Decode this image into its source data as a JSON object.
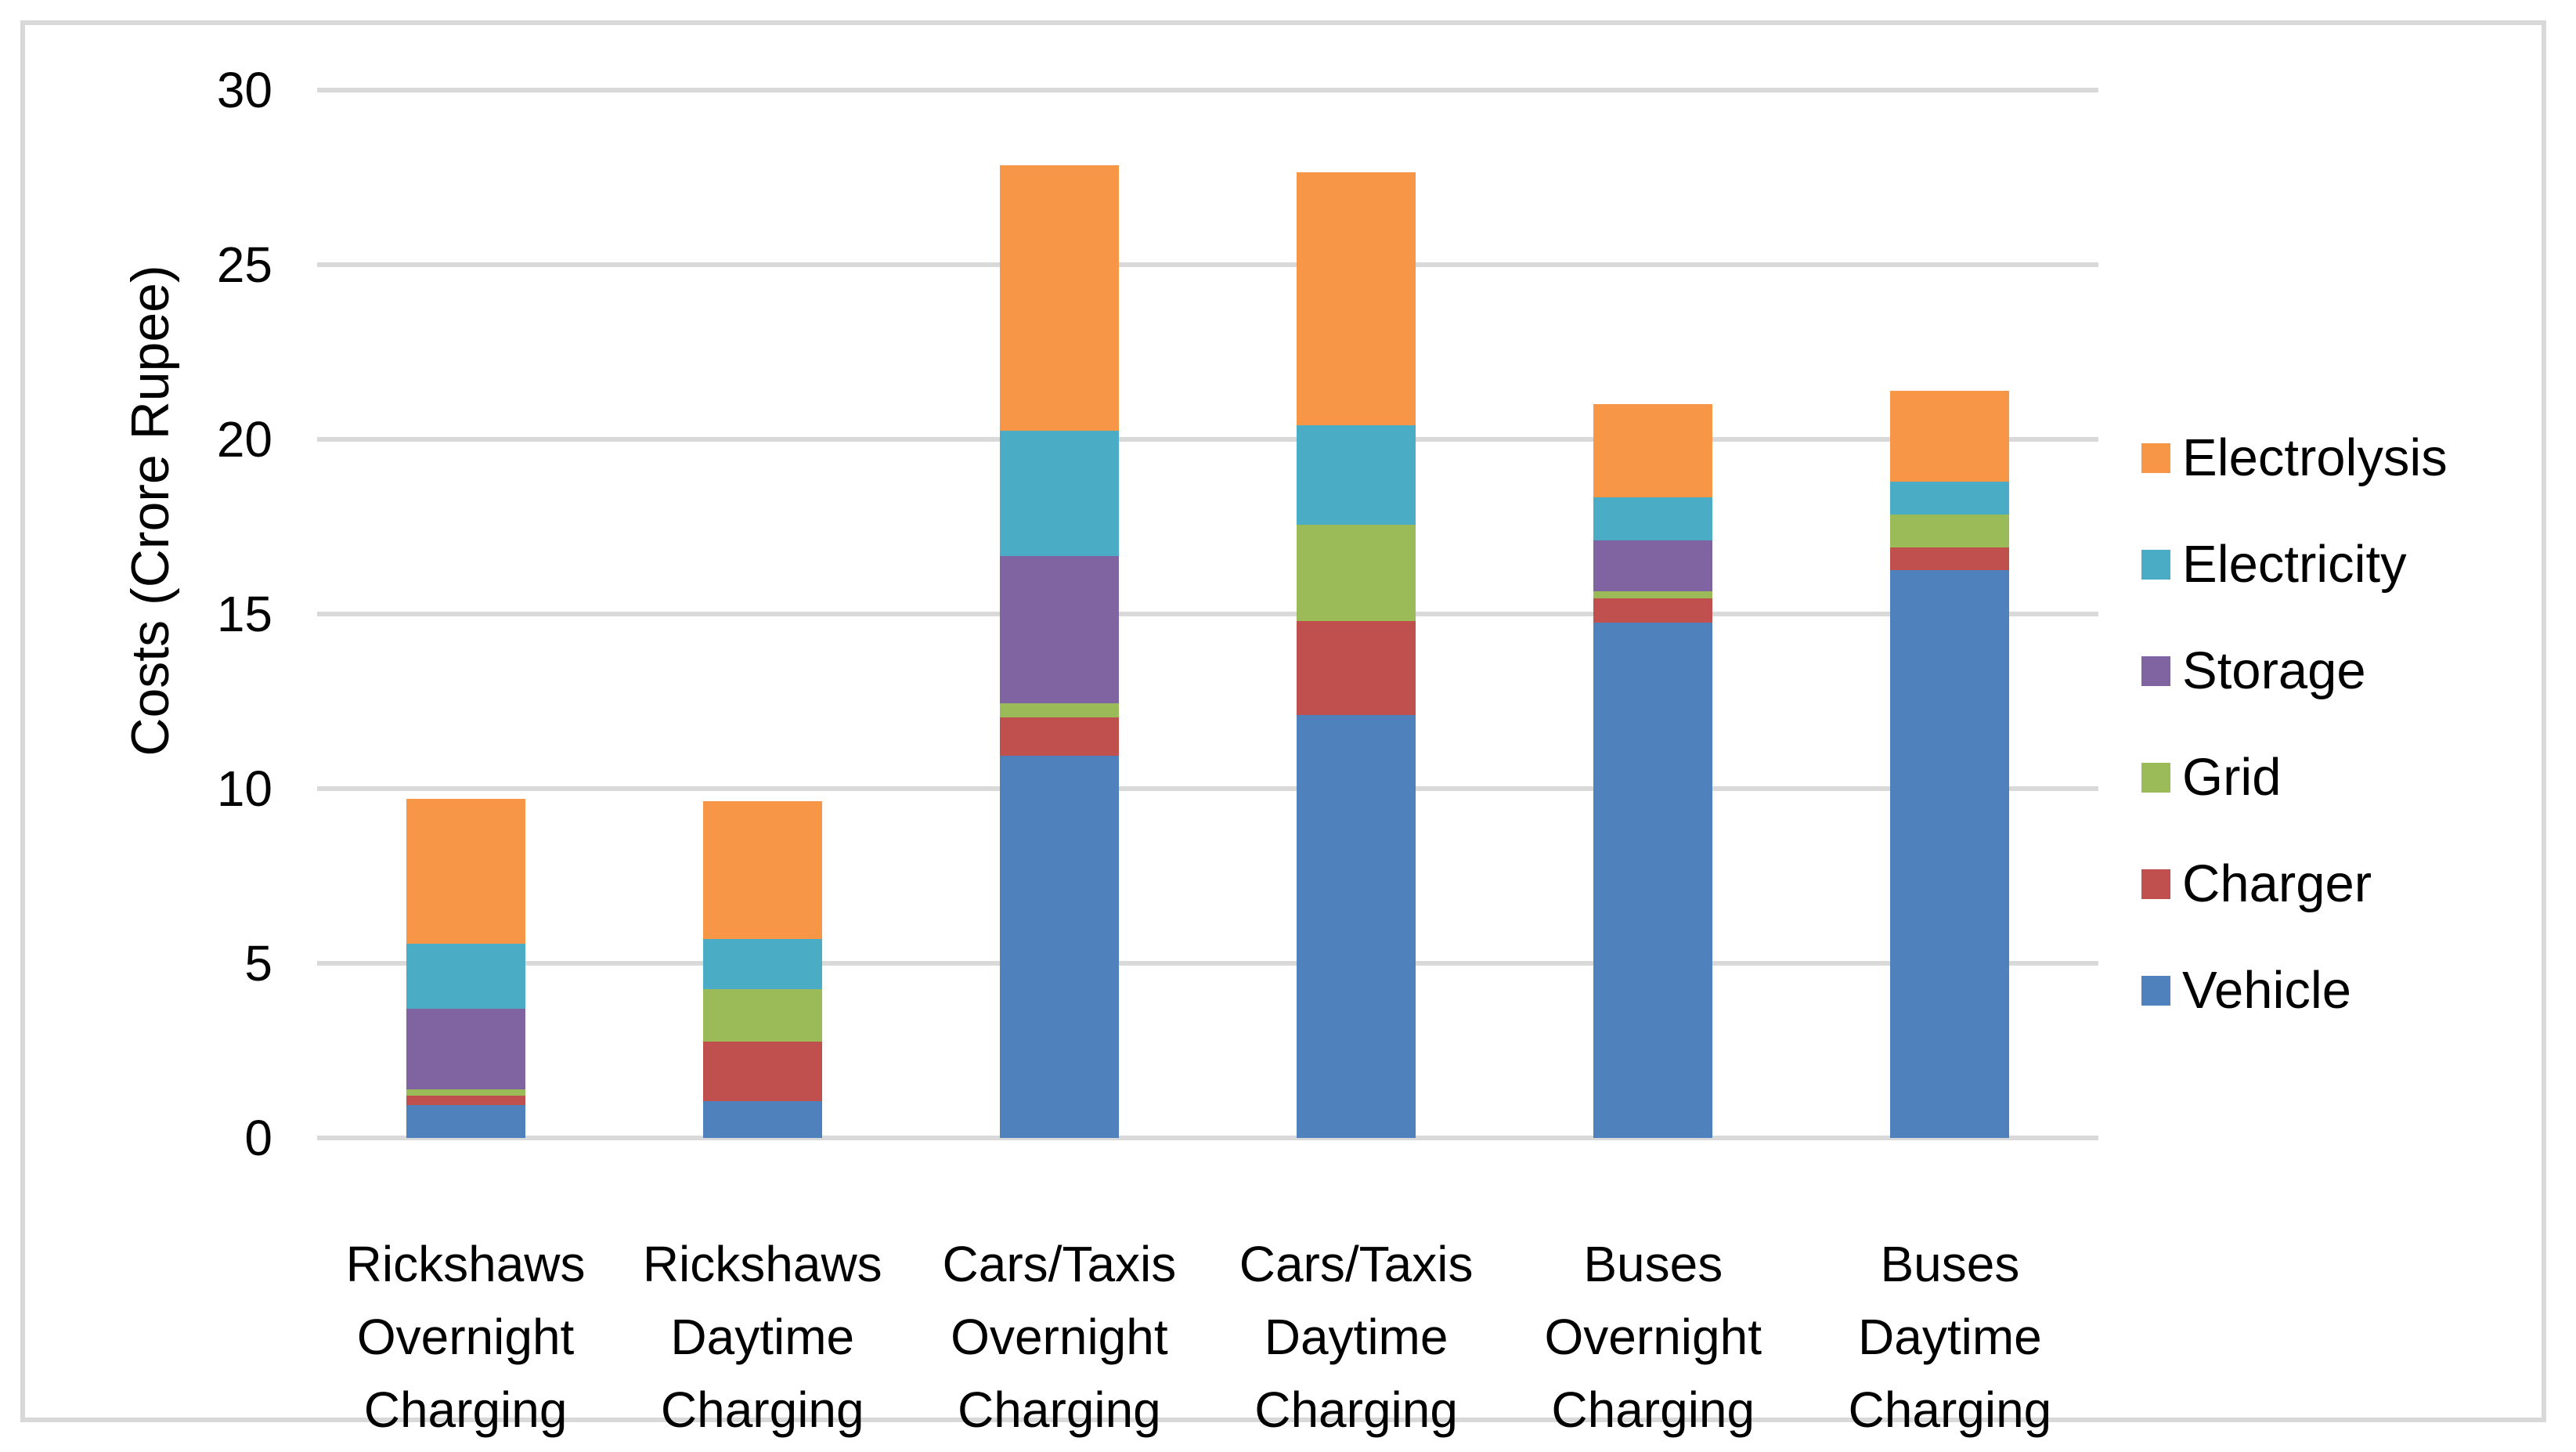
{
  "chart_data": {
    "type": "bar",
    "stacked": true,
    "title": "",
    "xlabel": "",
    "ylabel": "Costs (Crore Rupee)",
    "ylim": [
      0,
      30
    ],
    "yticks": [
      0,
      5,
      10,
      15,
      20,
      25,
      30
    ],
    "grid": true,
    "legend_position": "right",
    "categories": [
      [
        "Rickshaws",
        "Overnight",
        "Charging"
      ],
      [
        "Rickshaws",
        "Daytime",
        "Charging"
      ],
      [
        "Cars/Taxis",
        "Overnight",
        "Charging"
      ],
      [
        "Cars/Taxis",
        "Daytime",
        "Charging"
      ],
      [
        "Buses",
        "Overnight",
        "Charging"
      ],
      [
        "Buses",
        "Daytime",
        "Charging"
      ]
    ],
    "series": [
      {
        "name": "Vehicle",
        "color": "#4F81BD",
        "values": [
          0.95,
          1.05,
          10.95,
          12.1,
          14.75,
          16.25
        ]
      },
      {
        "name": "Charger",
        "color": "#C0504D",
        "values": [
          0.25,
          1.7,
          1.1,
          2.7,
          0.7,
          0.65
        ]
      },
      {
        "name": "Grid",
        "color": "#9BBB59",
        "values": [
          0.2,
          1.5,
          0.4,
          2.75,
          0.2,
          0.95
        ]
      },
      {
        "name": "Storage",
        "color": "#8064A2",
        "values": [
          2.3,
          0,
          4.2,
          0,
          1.45,
          0
        ]
      },
      {
        "name": "Electricity",
        "color": "#4BACC6",
        "values": [
          1.85,
          1.45,
          3.6,
          2.85,
          1.25,
          0.95
        ]
      },
      {
        "name": "Electrolysis",
        "color": "#F79646",
        "values": [
          4.15,
          3.95,
          7.6,
          7.25,
          2.65,
          2.6
        ]
      }
    ],
    "legend_order": [
      "Electrolysis",
      "Electricity",
      "Storage",
      "Grid",
      "Charger",
      "Vehicle"
    ]
  },
  "colors": {
    "gridline": "#D9D9D9",
    "chart_border": "#D9D9D9",
    "text": "#000000",
    "background": "#FFFFFF"
  }
}
